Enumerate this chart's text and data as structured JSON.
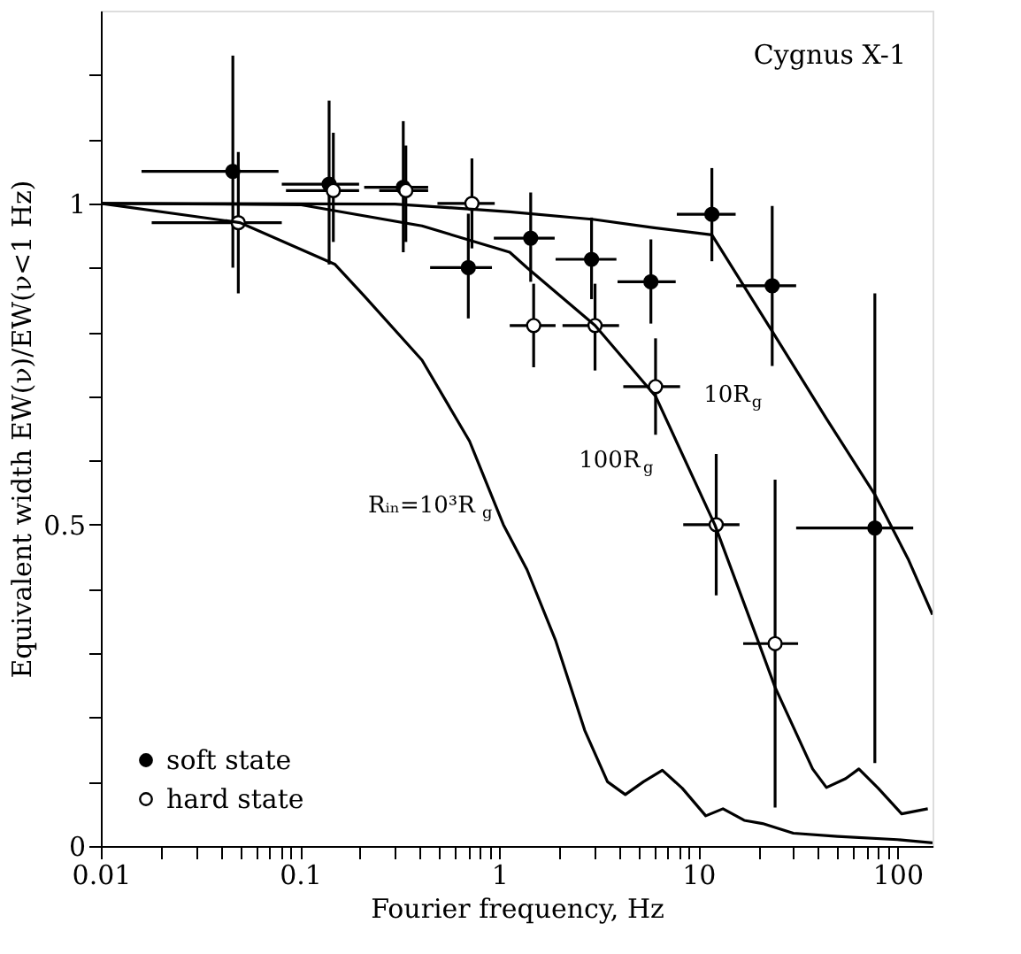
{
  "chart_data": {
    "type": "scatter",
    "title": "Cygnus X-1",
    "xlabel": "Fourier frequency, Hz",
    "ylabel": "Equivalent width EW(ν)/EW(ν<1 Hz)",
    "log": "x",
    "xlim": [
      0.01,
      150
    ],
    "ylim": [
      0,
      1.3
    ],
    "xticks": [
      0.01,
      {
        "value": 0.02,
        "label": null
      },
      {
        "value": 0.03,
        "label": null
      },
      {
        "value": 0.04,
        "label": null
      },
      {
        "value": 0.05,
        "label": null
      },
      {
        "value": 0.06,
        "label": null
      },
      {
        "value": 0.07,
        "label": null
      },
      {
        "value": 0.08,
        "label": null
      },
      {
        "value": 0.09,
        "label": null
      },
      0.1,
      {
        "value": 0.2,
        "label": null
      },
      {
        "value": 0.3,
        "label": null
      },
      {
        "value": 0.4,
        "label": null
      },
      {
        "value": 0.5,
        "label": null
      },
      {
        "value": 0.6,
        "label": null
      },
      {
        "value": 0.7,
        "label": null
      },
      {
        "value": 0.8,
        "label": null
      },
      {
        "value": 0.9,
        "label": null
      },
      1,
      {
        "value": 2,
        "label": null
      },
      {
        "value": 3,
        "label": null
      },
      {
        "value": 4,
        "label": null
      },
      {
        "value": 5,
        "label": null
      },
      {
        "value": 6,
        "label": null
      },
      {
        "value": 7,
        "label": null
      },
      {
        "value": 8,
        "label": null
      },
      {
        "value": 9,
        "label": null
      },
      10,
      {
        "value": 20,
        "label": null
      },
      {
        "value": 30,
        "label": null
      },
      {
        "value": 40,
        "label": null
      },
      {
        "value": 50,
        "label": null
      },
      {
        "value": 60,
        "label": null
      },
      {
        "value": 70,
        "label": null
      },
      {
        "value": 80,
        "label": null
      },
      {
        "value": 90,
        "label": null
      },
      100
    ],
    "yticks": [
      0,
      {
        "value": 0.1,
        "label": null
      },
      {
        "value": 0.2,
        "label": null
      },
      {
        "value": 0.3,
        "label": null
      },
      {
        "value": 0.4,
        "label": null
      },
      0.5,
      {
        "value": 0.6,
        "label": null
      },
      {
        "value": 0.7,
        "label": null
      },
      {
        "value": 0.8,
        "label": null
      },
      {
        "value": 0.9,
        "label": null
      },
      1,
      {
        "value": 1.1,
        "label": null
      },
      {
        "value": 1.2,
        "label": null
      }
    ],
    "grid": false,
    "legend": "bottom left",
    "series": [
      {
        "name": "soft state",
        "marker": "circle",
        "color": "#000000",
        "x": [
          0.046,
          0.14,
          0.33,
          0.7,
          1.44,
          2.91,
          5.78,
          11.7,
          23.5,
          77
        ],
        "values": [
          1.05,
          1.03,
          1.025,
          0.9,
          0.946,
          0.913,
          0.878,
          0.983,
          0.872,
          0.495
        ],
        "errors": [
          [
            0.9,
            1.23
          ],
          [
            0.905,
            1.16
          ],
          [
            0.924,
            1.128
          ],
          [
            0.821,
            0.984
          ],
          [
            0.878,
            1.017
          ],
          [
            0.851,
            0.978
          ],
          [
            0.813,
            0.944
          ],
          [
            0.91,
            1.055
          ],
          [
            0.747,
            0.996
          ],
          [
            0.129,
            0.86
          ]
        ],
        "xerrors": [
          [
            0.016,
            0.078
          ],
          [
            0.081,
            0.198
          ],
          [
            0.21,
            0.44
          ],
          [
            0.45,
            0.92
          ],
          [
            0.94,
            1.9
          ],
          [
            1.92,
            3.88
          ],
          [
            3.93,
            7.7
          ],
          [
            7.8,
            15.4
          ],
          [
            15.5,
            31
          ],
          [
            31,
            120
          ]
        ]
      },
      {
        "name": "hard state",
        "marker": "circle",
        "color": "#000000",
        "x": [
          0.049,
          0.147,
          0.34,
          0.73,
          1.49,
          3.03,
          6.1,
          12.3,
          24.3
        ],
        "values": [
          0.97,
          1.02,
          1.02,
          1.0,
          0.81,
          0.81,
          0.715,
          0.5,
          0.315
        ],
        "errors": [
          [
            0.86,
            1.08
          ],
          [
            0.94,
            1.11
          ],
          [
            0.94,
            1.09
          ],
          [
            0.93,
            1.07
          ],
          [
            0.745,
            0.875
          ],
          [
            0.74,
            0.875
          ],
          [
            0.64,
            0.79
          ],
          [
            0.39,
            0.61
          ],
          [
            0.06,
            0.57
          ]
        ],
        "xerrors": [
          [
            0.018,
            0.081
          ],
          [
            0.085,
            0.198
          ],
          [
            0.25,
            0.44
          ],
          [
            0.49,
            0.95
          ],
          [
            1.13,
            1.92
          ],
          [
            2.08,
            4.0
          ],
          [
            4.2,
            8.1
          ],
          [
            8.4,
            16.1
          ],
          [
            16.8,
            31.7
          ]
        ]
      },
      {
        "type": "line",
        "color": "#000000",
        "x": [
          0.01,
          0.05,
          0.15,
          0.21,
          0.41,
          0.71,
          1.05,
          1.38,
          1.92,
          2.69,
          3.5,
          4.3,
          5.3,
          6.6,
          8.3,
          10.9,
          13.3,
          17,
          21,
          30,
          50,
          100,
          150
        ],
        "values": [
          1.0,
          0.97,
          0.905,
          0.856,
          0.756,
          0.63,
          0.5,
          0.43,
          0.32,
          0.18,
          0.1,
          0.08,
          0.1,
          0.118,
          0.09,
          0.047,
          0.058,
          0.04,
          0.035,
          0.02,
          0.015,
          0.01,
          0.005
        ]
      },
      {
        "type": "line",
        "color": "#000000",
        "x": [
          0.01,
          0.1,
          0.41,
          1.13,
          1.38,
          3.03,
          6.1,
          12.1,
          19.9,
          24.3,
          37.5,
          44,
          55,
          64,
          80,
          105,
          142
        ],
        "values": [
          1.0,
          0.998,
          0.965,
          0.924,
          0.9,
          0.81,
          0.7,
          0.5,
          0.32,
          0.247,
          0.12,
          0.091,
          0.105,
          0.12,
          0.09,
          0.05,
          0.058
        ]
      },
      {
        "type": "line",
        "color": "#000000",
        "x": [
          0.01,
          0.3,
          1.13,
          3,
          6,
          11.7,
          23.5,
          44,
          77,
          113,
          150
        ],
        "values": [
          1.0,
          0.999,
          0.987,
          0.975,
          0.962,
          0.951,
          0.801,
          0.665,
          0.547,
          0.447,
          0.36
        ]
      }
    ],
    "annotations": [
      {
        "text": "10R$_{g}$",
        "x": 23.5,
        "y": 0.801
      },
      {
        "text": "100R$_{g}$",
        "x": 6.1,
        "y": 0.7
      },
      {
        "text": "Rᵢₙ=10³R$_{g}$",
        "x": 0.71,
        "y": 0.63
      }
    ]
  }
}
